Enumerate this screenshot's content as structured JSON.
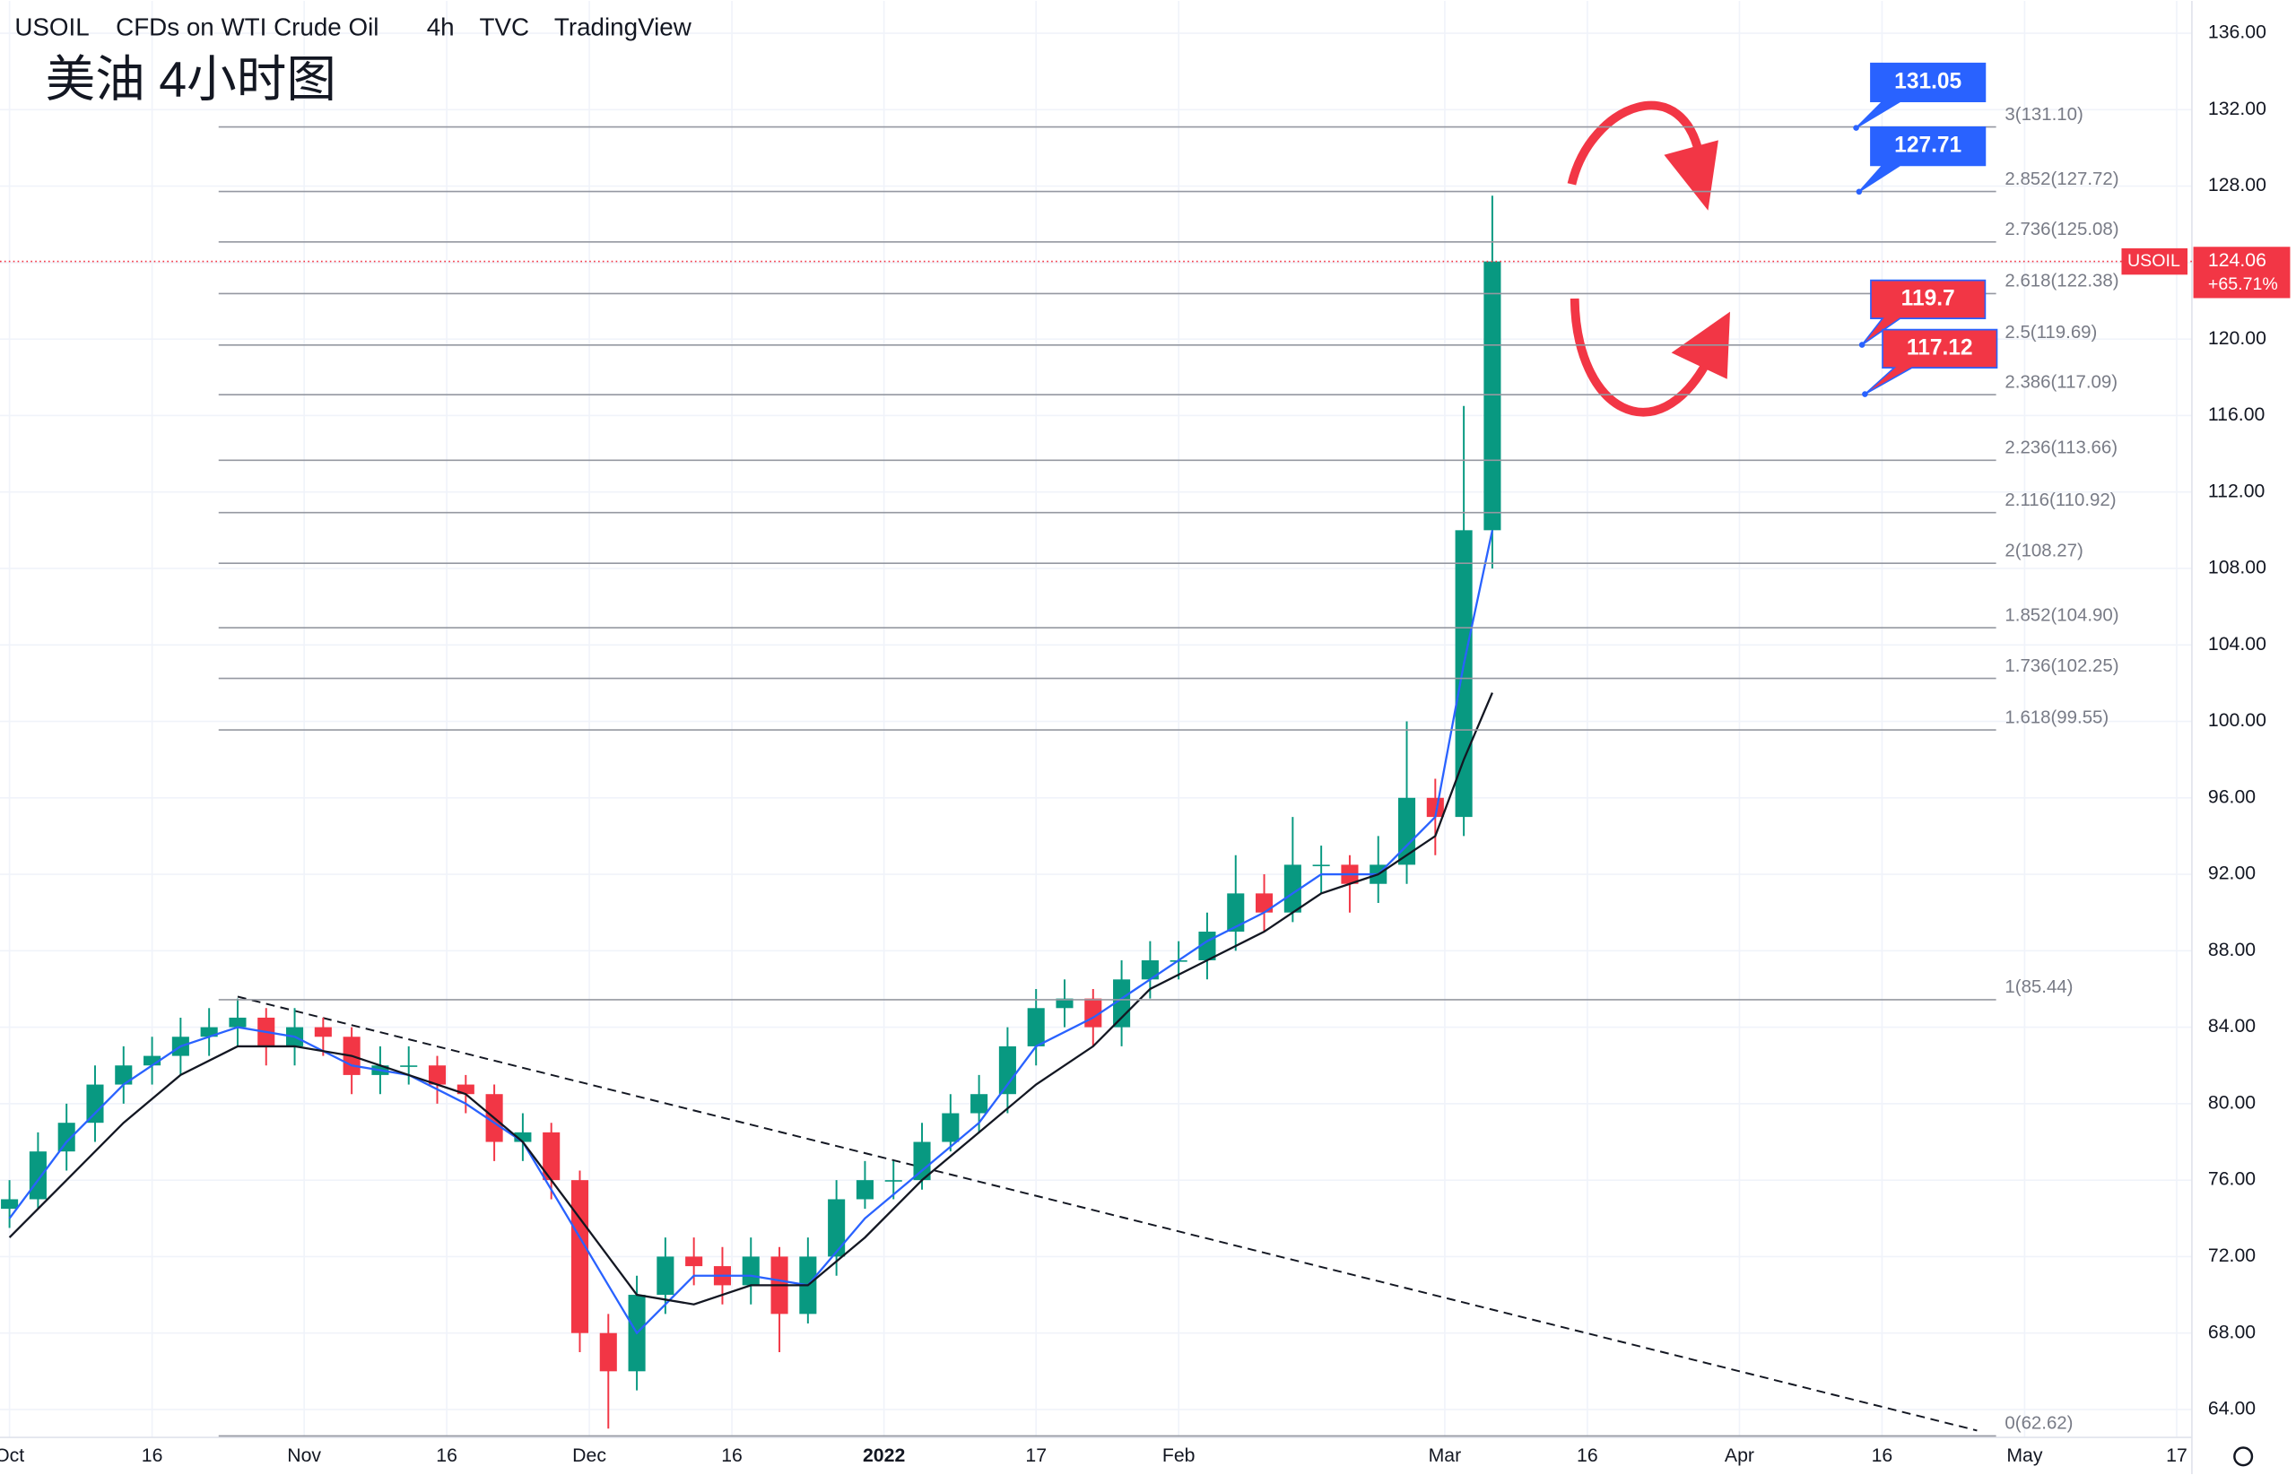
{
  "chart_data": {
    "type": "candlestick",
    "symbol": "USOIL",
    "header": [
      "USOIL",
      "CFDs on WTI Crude Oil",
      "4h",
      "TVC",
      "TradingView"
    ],
    "title": "美油 4小时图",
    "xlim": [
      -1,
      229.6
    ],
    "ylim": [
      62.54,
      137.69
    ],
    "xticks": [
      {
        "value": 0,
        "label": "Oct"
      },
      {
        "value": 15,
        "label": "16"
      },
      {
        "value": 31,
        "label": "Nov"
      },
      {
        "value": 46,
        "label": "16"
      },
      {
        "value": 61,
        "label": "Dec"
      },
      {
        "value": 76,
        "label": "16"
      },
      {
        "value": 92,
        "label": "2022"
      },
      {
        "value": 108,
        "label": "17"
      },
      {
        "value": 123,
        "label": "Feb"
      },
      {
        "value": 151,
        "label": "Mar"
      },
      {
        "value": 166,
        "label": "16"
      },
      {
        "value": 182,
        "label": "Apr"
      },
      {
        "value": 197,
        "label": "16"
      },
      {
        "value": 212,
        "label": "May"
      },
      {
        "value": 228,
        "label": "17"
      }
    ],
    "yticks": [
      {
        "value": 64,
        "label": "64.00"
      },
      {
        "value": 68,
        "label": "68.00"
      },
      {
        "value": 72,
        "label": "72.00"
      },
      {
        "value": 76,
        "label": "76.00"
      },
      {
        "value": 80,
        "label": "80.00"
      },
      {
        "value": 84,
        "label": "84.00"
      },
      {
        "value": 88,
        "label": "88.00"
      },
      {
        "value": 92,
        "label": "92.00"
      },
      {
        "value": 96,
        "label": "96.00"
      },
      {
        "value": 100,
        "label": "100.00"
      },
      {
        "value": 104,
        "label": "104.00"
      },
      {
        "value": 108,
        "label": "108.00"
      },
      {
        "value": 112,
        "label": "112.00"
      },
      {
        "value": 116,
        "label": "116.00"
      },
      {
        "value": 120,
        "label": "120.00"
      },
      {
        "value": 124,
        "label": "124.00"
      },
      {
        "value": 128,
        "label": "128.00"
      },
      {
        "value": 132,
        "label": "132.00"
      },
      {
        "value": 136,
        "label": "136.00"
      }
    ],
    "grid": true,
    "up_color": "#089981",
    "down_color": "#f23645",
    "x": [
      0,
      3,
      6,
      9,
      12,
      15,
      18,
      21,
      24,
      27,
      30,
      33,
      36,
      39,
      42,
      45,
      48,
      51,
      54,
      57,
      60,
      63,
      66,
      69,
      72,
      75,
      78,
      81,
      84,
      87,
      90,
      93,
      96,
      99,
      102,
      105,
      108,
      111,
      114,
      117,
      120,
      123,
      126,
      129,
      132,
      135,
      138,
      141,
      144,
      147,
      150,
      153,
      156
    ],
    "open": [
      74.5,
      75,
      77.5,
      79,
      81,
      82,
      82.5,
      83.5,
      84,
      84.5,
      83,
      84,
      83.5,
      81.5,
      82,
      82,
      81,
      80.5,
      78,
      78.5,
      76,
      68,
      66,
      70,
      72,
      71.5,
      70.5,
      72,
      69,
      72,
      75,
      76,
      76,
      78,
      79.5,
      80.5,
      83,
      85,
      85.5,
      84,
      86.5,
      87.5,
      87.5,
      89,
      91,
      90,
      92.5,
      92.5,
      91.5,
      92.5,
      96,
      95,
      110
    ],
    "high": [
      76,
      78.5,
      80,
      82,
      83,
      83.5,
      84.5,
      85,
      85.5,
      85,
      85,
      84.5,
      84,
      83,
      83,
      82.5,
      81.5,
      81,
      79.5,
      79,
      76.5,
      69,
      71,
      73,
      73,
      72.5,
      73,
      72.5,
      73,
      76,
      77,
      77,
      79,
      80.5,
      81.5,
      84,
      86,
      86.5,
      86,
      87.5,
      88.5,
      88.5,
      90,
      93,
      92,
      95,
      93.5,
      93,
      94,
      100,
      97,
      116.5,
      127.5
    ],
    "low": [
      73.5,
      74.5,
      76.5,
      78,
      80,
      81,
      81.5,
      82.5,
      83,
      82,
      82,
      82.5,
      80.5,
      80.5,
      81,
      80,
      79.5,
      77,
      77,
      75,
      67,
      63,
      65,
      69,
      70.5,
      69.5,
      69.5,
      67,
      68.5,
      71,
      74.5,
      75,
      75.5,
      77.5,
      78.5,
      79.5,
      82,
      84,
      83,
      83,
      85.5,
      86.5,
      86.5,
      88,
      89,
      89.5,
      91,
      90,
      90.5,
      91.5,
      93,
      94,
      108
    ],
    "close": [
      75,
      77.5,
      79,
      81,
      82,
      82.5,
      83.5,
      84,
      84.5,
      83,
      84,
      83.5,
      81.5,
      82,
      82,
      81,
      80.5,
      78,
      78.5,
      76,
      68,
      66,
      70,
      72,
      71.5,
      70.5,
      72,
      69,
      72,
      75,
      76,
      76,
      78,
      79.5,
      80.5,
      83,
      85,
      85.5,
      84,
      86.5,
      87.5,
      87.5,
      89,
      91,
      90,
      92.5,
      92.5,
      91.5,
      92.5,
      96,
      95,
      110,
      124.06
    ],
    "moving_averages": [
      {
        "color": "#2962ff",
        "x": [
          0,
          6,
          12,
          18,
          24,
          30,
          36,
          42,
          48,
          54,
          60,
          66,
          72,
          78,
          84,
          90,
          96,
          102,
          108,
          114,
          120,
          126,
          132,
          138,
          144,
          150,
          153,
          156
        ],
        "values": [
          74,
          78,
          81,
          83,
          84,
          83.5,
          82,
          81.5,
          80,
          78,
          73,
          68,
          71,
          71,
          70.5,
          74,
          76.5,
          79,
          83,
          84.5,
          86.5,
          88.5,
          90,
          92,
          92,
          95,
          103,
          110
        ]
      },
      {
        "color": "#131722",
        "x": [
          0,
          6,
          12,
          18,
          24,
          30,
          36,
          42,
          48,
          54,
          60,
          66,
          72,
          78,
          84,
          90,
          96,
          102,
          108,
          114,
          120,
          126,
          132,
          138,
          144,
          150,
          153,
          156
        ],
        "values": [
          73,
          76,
          79,
          81.5,
          83,
          83,
          82.5,
          81.5,
          80.5,
          78,
          74,
          70,
          69.5,
          70.5,
          70.5,
          73,
          76,
          78.5,
          81,
          83,
          86,
          87.5,
          89,
          91,
          92,
          94,
          98,
          101.5
        ]
      }
    ],
    "trendline": {
      "x": [
        24,
        207
      ],
      "y": [
        85.6,
        62.9
      ],
      "color": "#131722"
    },
    "fib_levels": [
      {
        "value": 131.1,
        "label": "3(131.10)"
      },
      {
        "value": 127.72,
        "label": "2.852(127.72)"
      },
      {
        "value": 125.08,
        "label": "2.736(125.08)"
      },
      {
        "value": 122.38,
        "label": "2.618(122.38)"
      },
      {
        "value": 119.69,
        "label": "2.5(119.69)"
      },
      {
        "value": 117.09,
        "label": "2.386(117.09)"
      },
      {
        "value": 113.66,
        "label": "2.236(113.66)"
      },
      {
        "value": 110.92,
        "label": "2.116(110.92)"
      },
      {
        "value": 108.27,
        "label": "2(108.27)"
      },
      {
        "value": 104.9,
        "label": "1.852(104.90)"
      },
      {
        "value": 102.25,
        "label": "1.736(102.25)"
      },
      {
        "value": 99.55,
        "label": "1.618(99.55)"
      },
      {
        "value": 85.44,
        "label": "1(85.44)"
      },
      {
        "value": 62.62,
        "label": "0(62.62)"
      }
    ],
    "fib_x": [
      22,
      209
    ],
    "price_labels": [
      {
        "value": 131.05,
        "color": "#2962ff"
      },
      {
        "value": 127.71,
        "color": "#2962ff"
      },
      {
        "value": 119.7,
        "color": "#f23645"
      },
      {
        "value": 117.12,
        "color": "#f23645"
      }
    ],
    "last_price": 124.06,
    "change": {
      "value": 65.71,
      "label": "+65.71%"
    }
  }
}
